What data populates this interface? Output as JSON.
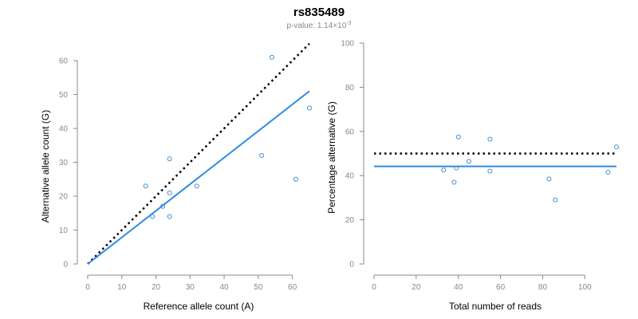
{
  "page": {
    "title": "rs835489",
    "subtitle_prefix": "p-value: 1.14×10",
    "subtitle_exponent": "-3"
  },
  "colors": {
    "points": "#3a8fd6",
    "fit": "#2e8be0",
    "reference": "#000000",
    "axis": "#888888"
  },
  "chart_data": [
    {
      "type": "scatter",
      "title": "",
      "xlabel": "Reference allele count (A)",
      "ylabel": "Alternative allele count (G)",
      "xlim": [
        0,
        65
      ],
      "ylim": [
        0,
        60
      ],
      "xticks": [
        0,
        10,
        20,
        30,
        40,
        50,
        60
      ],
      "yticks": [
        0,
        10,
        20,
        30,
        40,
        50,
        60
      ],
      "grid": false,
      "points": [
        {
          "x": 17,
          "y": 23
        },
        {
          "x": 19,
          "y": 14
        },
        {
          "x": 22,
          "y": 17
        },
        {
          "x": 24,
          "y": 31
        },
        {
          "x": 24,
          "y": 21
        },
        {
          "x": 24,
          "y": 14
        },
        {
          "x": 32,
          "y": 23
        },
        {
          "x": 51,
          "y": 32
        },
        {
          "x": 54,
          "y": 61
        },
        {
          "x": 61,
          "y": 25
        },
        {
          "x": 65,
          "y": 46
        }
      ],
      "fit_line": {
        "x": [
          0,
          65
        ],
        "y": [
          0,
          51
        ]
      },
      "reference_line": {
        "x": [
          0,
          65
        ],
        "y": [
          0,
          65
        ]
      }
    },
    {
      "type": "scatter",
      "title": "",
      "xlabel": "Total number of reads",
      "ylabel": "Percentage alternative (G)",
      "xlim": [
        0,
        115
      ],
      "ylim": [
        0,
        100
      ],
      "xticks": [
        0,
        20,
        40,
        60,
        80,
        100
      ],
      "yticks": [
        0,
        20,
        40,
        60,
        80,
        100
      ],
      "grid": false,
      "points": [
        {
          "x": 33,
          "y": 42.5
        },
        {
          "x": 38,
          "y": 37
        },
        {
          "x": 39,
          "y": 43.5
        },
        {
          "x": 40,
          "y": 57.5
        },
        {
          "x": 45,
          "y": 46.5
        },
        {
          "x": 55,
          "y": 56.5
        },
        {
          "x": 55,
          "y": 42
        },
        {
          "x": 83,
          "y": 38.5
        },
        {
          "x": 86,
          "y": 29
        },
        {
          "x": 111,
          "y": 41.5
        },
        {
          "x": 115,
          "y": 53
        }
      ],
      "fit_line": {
        "x": [
          0,
          115
        ],
        "y": [
          44.2,
          44.2
        ]
      },
      "reference_line": {
        "x": [
          0,
          115
        ],
        "y": [
          50,
          50
        ]
      }
    }
  ]
}
